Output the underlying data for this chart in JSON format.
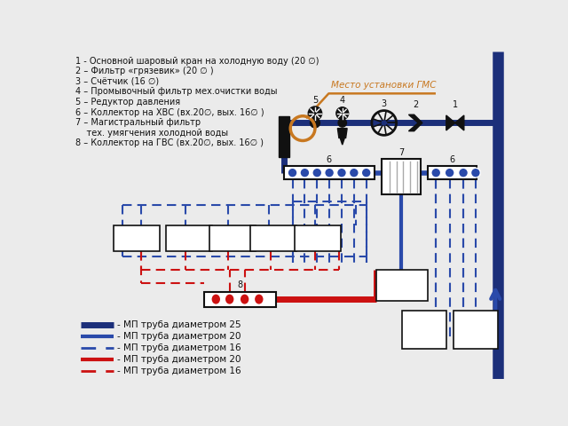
{
  "bg_color": "#ebebeb",
  "legend_items": [
    {
      "color": "#1c2f7a",
      "lw": 5,
      "ls": "solid",
      "label": "- МП труба диаметром 25"
    },
    {
      "color": "#2a4aaa",
      "lw": 3,
      "ls": "solid",
      "label": "- МП труба диаметром 20"
    },
    {
      "color": "#2a4aaa",
      "lw": 2,
      "ls": "dashed",
      "label": "- МП труба диаметром 16"
    },
    {
      "color": "#cc1111",
      "lw": 3,
      "ls": "solid",
      "label": "- МП труба диаметром 20"
    },
    {
      "color": "#cc1111",
      "lw": 2,
      "ls": "dashed",
      "label": "- МП труба диаметром 16"
    }
  ],
  "left_texts": [
    "1 - Основной шаровый кран на холодную воду (20 ∅)",
    "2 – Фильтр «грязевик» (20 ∅ )",
    "3 – Счётчик (16 ∅)",
    "4 – Промывочный фильтр мех.очистки воды",
    "5 – Редуктор давления",
    "6 – Коллектор на ХВС (вх.20∅, вых. 16∅ )",
    "7 – Магистральный фильтр",
    "    тех. умягчения холодной воды",
    "8 – Коллектор на ГВС (вх.20∅, вых. 16∅ )"
  ],
  "blue_heavy": "#1c2f7a",
  "blue_med": "#2a4aaa",
  "blue_light": "#3a6acc",
  "red_col": "#cc1111",
  "orange_col": "#c87820",
  "black_col": "#111111",
  "white_col": "#ffffff"
}
